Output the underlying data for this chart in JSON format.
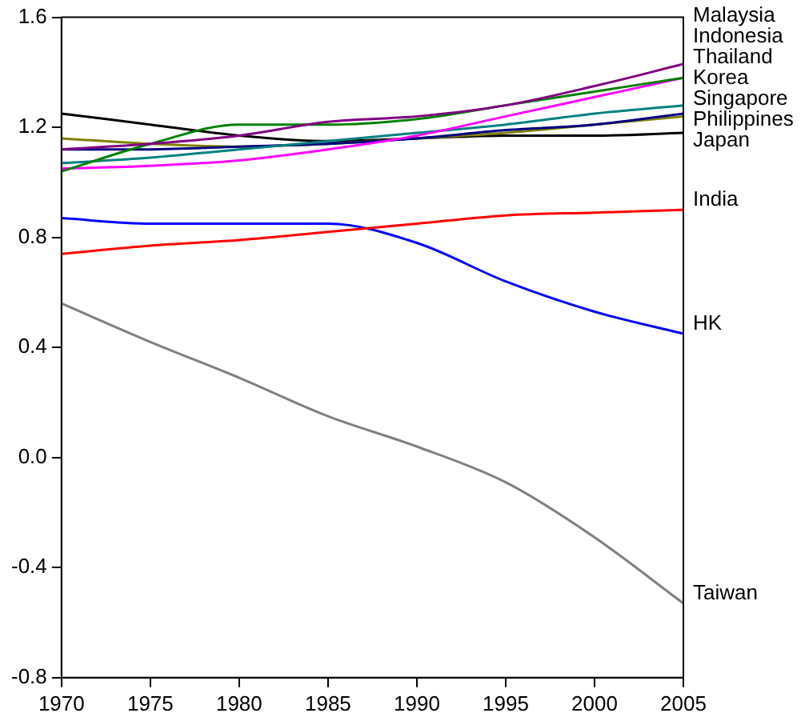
{
  "chart_data": {
    "type": "line",
    "x": [
      1970,
      1975,
      1980,
      1985,
      1990,
      1995,
      2000,
      2005
    ],
    "series": [
      {
        "name": "Malaysia",
        "color": "#800080",
        "values": [
          1.12,
          1.14,
          1.17,
          1.22,
          1.24,
          1.28,
          1.35,
          1.43
        ]
      },
      {
        "name": "Indonesia",
        "color": "#008000",
        "values": [
          1.04,
          1.14,
          1.21,
          1.21,
          1.23,
          1.28,
          1.33,
          1.38
        ]
      },
      {
        "name": "Thailand",
        "color": "#ff00ff",
        "values": [
          1.05,
          1.06,
          1.08,
          1.12,
          1.17,
          1.24,
          1.31,
          1.38
        ]
      },
      {
        "name": "Korea",
        "color": "#008080",
        "values": [
          1.07,
          1.09,
          1.12,
          1.15,
          1.18,
          1.21,
          1.25,
          1.28
        ]
      },
      {
        "name": "Singapore",
        "color": "#000080",
        "values": [
          1.12,
          1.12,
          1.13,
          1.14,
          1.16,
          1.19,
          1.21,
          1.25
        ]
      },
      {
        "name": "Philippines",
        "color": "#808000",
        "values": [
          1.16,
          1.14,
          1.13,
          1.14,
          1.16,
          1.18,
          1.21,
          1.24
        ]
      },
      {
        "name": "Japan",
        "color": "#000000",
        "values": [
          1.25,
          1.21,
          1.17,
          1.15,
          1.16,
          1.17,
          1.17,
          1.18
        ]
      },
      {
        "name": "India",
        "color": "#ff0000",
        "values": [
          0.74,
          0.77,
          0.79,
          0.82,
          0.85,
          0.88,
          0.89,
          0.9
        ]
      },
      {
        "name": "HK",
        "color": "#0000ff",
        "values": [
          0.87,
          0.85,
          0.85,
          0.85,
          0.78,
          0.64,
          0.53,
          0.45
        ]
      },
      {
        "name": "Taiwan",
        "color": "#808080",
        "values": [
          0.56,
          0.42,
          0.29,
          0.15,
          0.04,
          -0.09,
          -0.29,
          -0.53
        ]
      }
    ],
    "xlim": [
      1970,
      2005
    ],
    "xticks": [
      1970,
      1975,
      1980,
      1985,
      1990,
      1995,
      2000,
      2005
    ],
    "ylim": [
      -0.8,
      1.6
    ],
    "yticks": [
      {
        "value": -0.8,
        "label": "-0.8"
      },
      {
        "value": -0.4,
        "label": "-0.4"
      },
      {
        "value": 0,
        "label": "0.0"
      },
      {
        "value": 0.4,
        "label": "0.4"
      },
      {
        "value": 0.8,
        "label": "0.8"
      },
      {
        "value": 1.2,
        "label": "1.2"
      },
      {
        "value": 1.6,
        "label": "1.6"
      }
    ],
    "grid": false,
    "legend": false,
    "marker": "none",
    "line_style": "solid"
  }
}
